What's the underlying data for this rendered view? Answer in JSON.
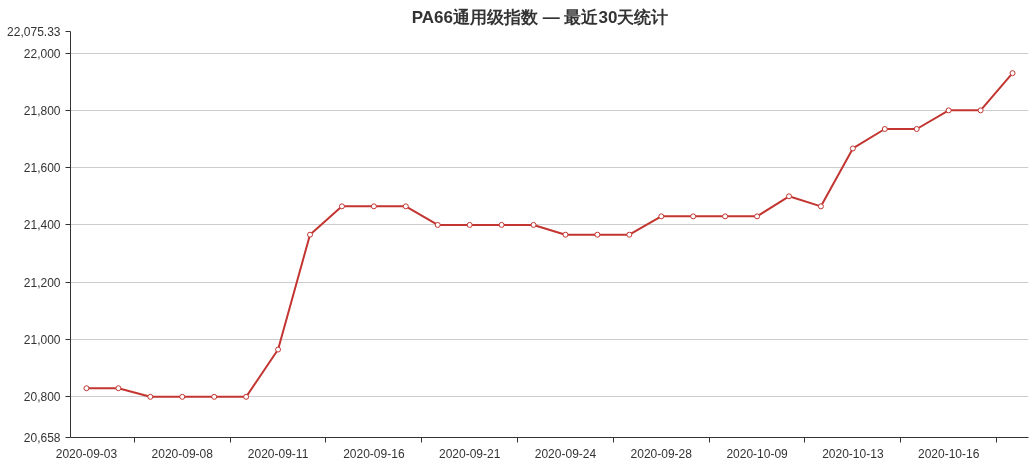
{
  "chart_data": {
    "type": "line",
    "title": "PA66通用级指数   —   最近30天统计",
    "categories": [
      "2020-09-03",
      null,
      null,
      "2020-09-08",
      null,
      null,
      "2020-09-11",
      null,
      null,
      "2020-09-16",
      null,
      null,
      "2020-09-21",
      null,
      null,
      "2020-09-24",
      null,
      null,
      "2020-09-28",
      null,
      null,
      "2020-10-09",
      null,
      null,
      "2020-10-13",
      null,
      null,
      "2020-10-16",
      null,
      null
    ],
    "series": [
      {
        "color": "#c23531",
        "values": [
          20830,
          20830,
          20800,
          20800,
          20800,
          20800,
          20965,
          21366,
          21465,
          21465,
          21465,
          21400,
          21400,
          21400,
          21400,
          21366,
          21366,
          21366,
          21430,
          21430,
          21430,
          21430,
          21500,
          21465,
          21667,
          21735,
          21735,
          21800,
          21800,
          21930
        ]
      }
    ],
    "ylim": [
      20658,
      22075.33
    ],
    "yticks": [
      {
        "value": 20658,
        "label": "20,658"
      },
      {
        "value": 20800,
        "label": "20,800"
      },
      {
        "value": 21000,
        "label": "21,000"
      },
      {
        "value": 21200,
        "label": "21,200"
      },
      {
        "value": 21400,
        "label": "21,400"
      },
      {
        "value": 21600,
        "label": "21,600"
      },
      {
        "value": 21800,
        "label": "21,800"
      },
      {
        "value": 22000,
        "label": "22,000"
      },
      {
        "value": 22075.33,
        "label": "22,075.33"
      }
    ],
    "grid": "y",
    "marker": "circle",
    "line_style": "solid"
  }
}
